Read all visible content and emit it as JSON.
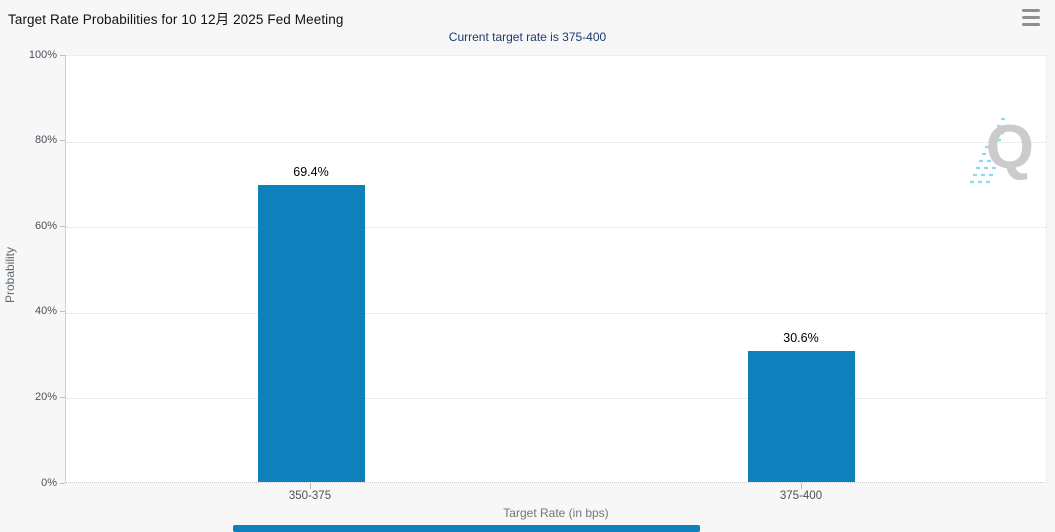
{
  "header": {
    "title": "Target Rate Probabilities for 10 12月 2025 Fed Meeting",
    "menu_icon": "hamburger-menu-icon"
  },
  "chart_data": {
    "type": "bar",
    "title": "Target Rate Probabilities for 10 12月 2025 Fed Meeting",
    "subtitle": "Current target rate is 375-400",
    "categories": [
      "350-375",
      "375-400"
    ],
    "values": [
      69.4,
      30.6
    ],
    "value_labels": [
      "69.4%",
      "30.6%"
    ],
    "xlabel": "Target Rate (in bps)",
    "ylabel": "Probability",
    "ylim": [
      0,
      100
    ],
    "ytick_labels_top_to_bottom": [
      "100%",
      "80%",
      "60%",
      "40%",
      "20%",
      "0%"
    ],
    "grid": "horizontal-dotted",
    "legend": "none",
    "bar_color": "#0e80bb",
    "plot_background": "#ffffff",
    "page_background": "#f7f7f7"
  },
  "watermark": {
    "letter": "Q",
    "letter_color": "#c9c9c9",
    "accent_color": "#86d7f2"
  },
  "colors": {
    "subtitle_text": "#1e3a6e",
    "axis_tick_text": "#49525c",
    "axis_title_text": "#6d7780"
  }
}
